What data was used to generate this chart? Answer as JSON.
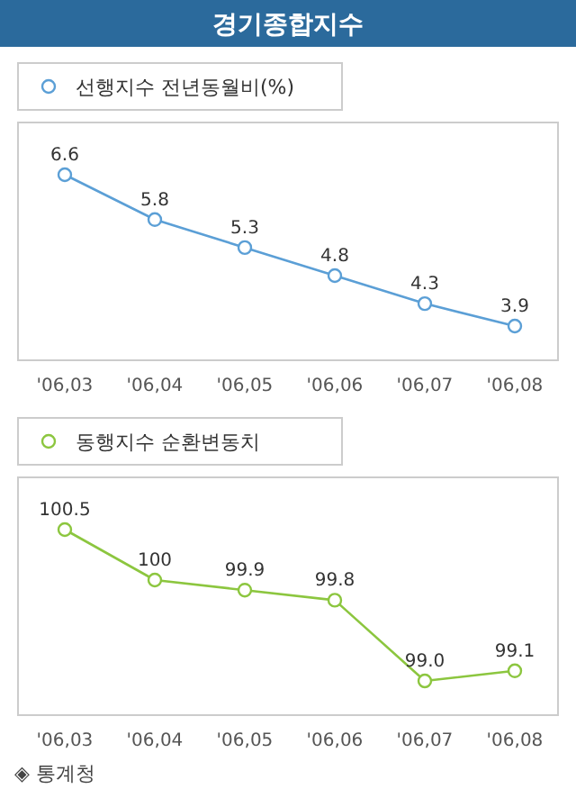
{
  "chart_data": [
    {
      "type": "line",
      "title": "경기종합지수",
      "categories": [
        "'06,03",
        "'06,04",
        "'06,05",
        "'06,06",
        "'06,07",
        "'06,08"
      ],
      "marker": "circle",
      "line_style": "solid",
      "legend": "top left",
      "series": [
        {
          "name": "선행지수 전년동월비(%)",
          "color": "#5b9fd6",
          "values": [
            6.6,
            5.8,
            5.3,
            4.8,
            4.3,
            3.9
          ],
          "value_labels": [
            "6.6",
            "5.8",
            "5.3",
            "4.8",
            "4.3",
            "3.9"
          ]
        }
      ]
    },
    {
      "type": "line",
      "categories": [
        "'06,03",
        "'06,04",
        "'06,05",
        "'06,06",
        "'06,07",
        "'06,08"
      ],
      "marker": "circle",
      "line_style": "solid",
      "legend": "top left",
      "annotations": [
        "◈ 통계청"
      ],
      "series": [
        {
          "name": "동행지수 순환변동치",
          "color": "#8cc63f",
          "values": [
            100.5,
            100,
            99.9,
            99.8,
            99.0,
            99.1
          ],
          "value_labels": [
            "100.5",
            "100",
            "99.9",
            "99.8",
            "99.0",
            "99.1"
          ]
        }
      ]
    }
  ]
}
